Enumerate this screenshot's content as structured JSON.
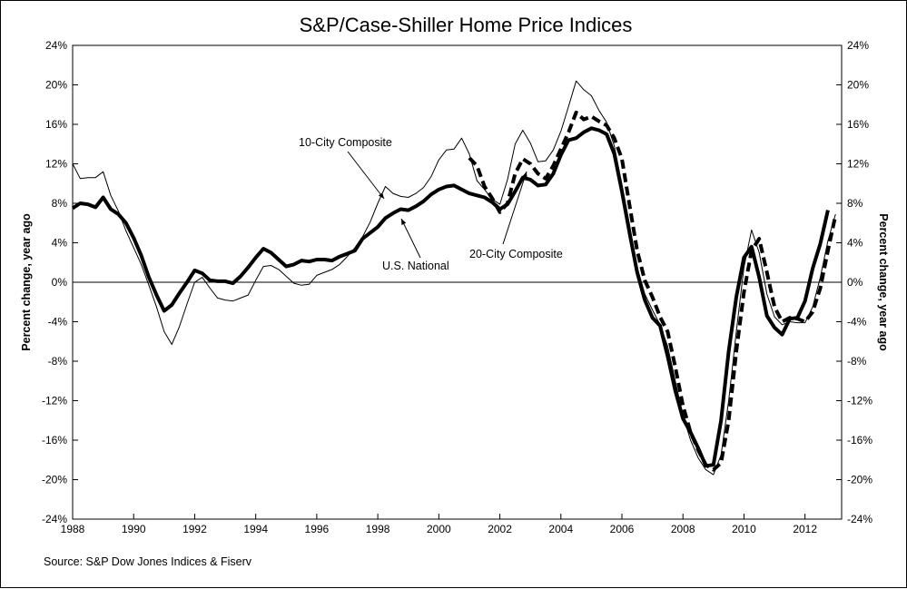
{
  "chart_data": {
    "type": "line",
    "title": "S&P/Case-Shiller Home Price Indices",
    "ylabel_left": "Percent change, year ago",
    "ylabel_right": "Percent change, year ago",
    "source": "Source: S&P Dow Jones Indices & Fiserv",
    "xlim": [
      1988,
      2013.2
    ],
    "ylim": [
      -24,
      24
    ],
    "x_ticks": [
      "1988",
      "1990",
      "1992",
      "1994",
      "1996",
      "1998",
      "2000",
      "2002",
      "2004",
      "2006",
      "2008",
      "2010",
      "2012"
    ],
    "y_ticks": [
      "24%",
      "20%",
      "16%",
      "12%",
      "8%",
      "4%",
      "0%",
      "-4%",
      "-8%",
      "-12%",
      "-16%",
      "-20%",
      "-24%"
    ],
    "grid": false,
    "legend": "none",
    "annotations": [
      {
        "text": "10-City Composite",
        "series": "10-City Composite"
      },
      {
        "text": "U.S. National",
        "series": "U.S. National"
      },
      {
        "text": "20-City Composite",
        "series": "20-City Composite"
      }
    ],
    "series": [
      {
        "name": "U.S. National",
        "style": "thick-solid",
        "points": [
          [
            1988.0,
            7.5
          ],
          [
            1988.25,
            8.0
          ],
          [
            1988.5,
            7.9
          ],
          [
            1988.75,
            7.6
          ],
          [
            1989.0,
            8.6
          ],
          [
            1989.25,
            7.4
          ],
          [
            1989.5,
            6.9
          ],
          [
            1989.75,
            6.0
          ],
          [
            1990.0,
            4.5
          ],
          [
            1990.25,
            2.7
          ],
          [
            1990.5,
            0.5
          ],
          [
            1990.75,
            -1.3
          ],
          [
            1991.0,
            -2.9
          ],
          [
            1991.25,
            -2.3
          ],
          [
            1991.5,
            -1.1
          ],
          [
            1991.75,
            0.0
          ],
          [
            1992.0,
            1.2
          ],
          [
            1992.25,
            0.9
          ],
          [
            1992.5,
            0.2
          ],
          [
            1992.75,
            0.1
          ],
          [
            1993.0,
            0.1
          ],
          [
            1993.25,
            -0.1
          ],
          [
            1993.5,
            0.6
          ],
          [
            1993.75,
            1.5
          ],
          [
            1994.0,
            2.5
          ],
          [
            1994.25,
            3.4
          ],
          [
            1994.5,
            3.0
          ],
          [
            1994.75,
            2.3
          ],
          [
            1995.0,
            1.6
          ],
          [
            1995.25,
            1.8
          ],
          [
            1995.5,
            2.2
          ],
          [
            1995.75,
            2.1
          ],
          [
            1996.0,
            2.3
          ],
          [
            1996.25,
            2.3
          ],
          [
            1996.5,
            2.2
          ],
          [
            1996.75,
            2.6
          ],
          [
            1997.0,
            2.9
          ],
          [
            1997.25,
            3.2
          ],
          [
            1997.5,
            4.4
          ],
          [
            1997.75,
            5.0
          ],
          [
            1998.0,
            5.6
          ],
          [
            1998.25,
            6.5
          ],
          [
            1998.5,
            7.0
          ],
          [
            1998.75,
            7.4
          ],
          [
            1999.0,
            7.3
          ],
          [
            1999.25,
            7.7
          ],
          [
            1999.5,
            8.2
          ],
          [
            1999.75,
            8.9
          ],
          [
            2000.0,
            9.4
          ],
          [
            2000.25,
            9.7
          ],
          [
            2000.5,
            9.8
          ],
          [
            2000.75,
            9.4
          ],
          [
            2001.0,
            9.0
          ],
          [
            2001.25,
            8.8
          ],
          [
            2001.5,
            8.6
          ],
          [
            2001.75,
            8.1
          ],
          [
            2002.0,
            7.4
          ],
          [
            2002.25,
            7.9
          ],
          [
            2002.5,
            9.2
          ],
          [
            2002.75,
            10.6
          ],
          [
            2003.0,
            10.4
          ],
          [
            2003.25,
            9.8
          ],
          [
            2003.5,
            9.9
          ],
          [
            2003.75,
            11.0
          ],
          [
            2004.0,
            12.9
          ],
          [
            2004.25,
            14.4
          ],
          [
            2004.5,
            14.6
          ],
          [
            2004.75,
            15.2
          ],
          [
            2005.0,
            15.6
          ],
          [
            2005.25,
            15.4
          ],
          [
            2005.5,
            15.0
          ],
          [
            2005.75,
            13.0
          ],
          [
            2006.0,
            9.2
          ],
          [
            2006.25,
            5.0
          ],
          [
            2006.5,
            1.0
          ],
          [
            2006.75,
            -1.8
          ],
          [
            2007.0,
            -3.6
          ],
          [
            2007.25,
            -4.4
          ],
          [
            2007.5,
            -7.5
          ],
          [
            2007.75,
            -11.0
          ],
          [
            2008.0,
            -13.8
          ],
          [
            2008.25,
            -15.2
          ],
          [
            2008.5,
            -16.8
          ],
          [
            2008.75,
            -18.6
          ],
          [
            2009.0,
            -18.5
          ],
          [
            2009.25,
            -14.0
          ],
          [
            2009.5,
            -7.0
          ],
          [
            2009.75,
            -1.5
          ],
          [
            2010.0,
            2.5
          ],
          [
            2010.25,
            3.6
          ],
          [
            2010.5,
            0.5
          ],
          [
            2010.75,
            -3.4
          ],
          [
            2011.0,
            -4.6
          ],
          [
            2011.25,
            -5.3
          ],
          [
            2011.5,
            -3.7
          ],
          [
            2011.75,
            -3.6
          ],
          [
            2012.0,
            -1.9
          ],
          [
            2012.25,
            1.4
          ],
          [
            2012.5,
            3.9
          ],
          [
            2012.75,
            7.3
          ]
        ]
      },
      {
        "name": "10-City Composite",
        "style": "thin-solid",
        "points": [
          [
            1988.0,
            12.0
          ],
          [
            1988.25,
            10.5
          ],
          [
            1988.5,
            10.6
          ],
          [
            1988.75,
            10.6
          ],
          [
            1989.0,
            11.2
          ],
          [
            1989.25,
            8.8
          ],
          [
            1989.5,
            7.2
          ],
          [
            1989.75,
            5.2
          ],
          [
            1990.0,
            3.5
          ],
          [
            1990.25,
            1.8
          ],
          [
            1990.5,
            -0.3
          ],
          [
            1990.75,
            -2.5
          ],
          [
            1991.0,
            -5.0
          ],
          [
            1991.25,
            -6.3
          ],
          [
            1991.5,
            -4.5
          ],
          [
            1991.75,
            -2.2
          ],
          [
            1992.0,
            0.0
          ],
          [
            1992.25,
            0.5
          ],
          [
            1992.5,
            -0.6
          ],
          [
            1992.75,
            -1.6
          ],
          [
            1993.0,
            -1.8
          ],
          [
            1993.25,
            -1.9
          ],
          [
            1993.5,
            -1.6
          ],
          [
            1993.75,
            -1.3
          ],
          [
            1994.0,
            0.2
          ],
          [
            1994.25,
            1.6
          ],
          [
            1994.5,
            1.7
          ],
          [
            1994.75,
            1.3
          ],
          [
            1995.0,
            0.6
          ],
          [
            1995.25,
            -0.1
          ],
          [
            1995.5,
            -0.3
          ],
          [
            1995.75,
            -0.2
          ],
          [
            1996.0,
            0.7
          ],
          [
            1996.25,
            1.0
          ],
          [
            1996.5,
            1.3
          ],
          [
            1996.75,
            1.8
          ],
          [
            1997.0,
            2.6
          ],
          [
            1997.25,
            3.5
          ],
          [
            1997.5,
            4.6
          ],
          [
            1997.75,
            6.1
          ],
          [
            1998.0,
            8.0
          ],
          [
            1998.25,
            9.7
          ],
          [
            1998.5,
            9.0
          ],
          [
            1998.75,
            8.7
          ],
          [
            1999.0,
            8.6
          ],
          [
            1999.25,
            9.0
          ],
          [
            1999.5,
            9.6
          ],
          [
            1999.75,
            10.7
          ],
          [
            2000.0,
            12.4
          ],
          [
            2000.25,
            13.4
          ],
          [
            2000.5,
            13.5
          ],
          [
            2000.75,
            14.6
          ],
          [
            2001.0,
            13.0
          ],
          [
            2001.25,
            10.3
          ],
          [
            2001.5,
            9.4
          ],
          [
            2001.75,
            8.4
          ],
          [
            2002.0,
            7.9
          ],
          [
            2002.25,
            10.4
          ],
          [
            2002.5,
            14.0
          ],
          [
            2002.75,
            15.4
          ],
          [
            2003.0,
            14.1
          ],
          [
            2003.25,
            12.2
          ],
          [
            2003.5,
            12.3
          ],
          [
            2003.75,
            13.4
          ],
          [
            2004.0,
            15.3
          ],
          [
            2004.25,
            17.8
          ],
          [
            2004.5,
            20.4
          ],
          [
            2004.75,
            19.5
          ],
          [
            2005.0,
            18.9
          ],
          [
            2005.25,
            17.4
          ],
          [
            2005.5,
            16.2
          ],
          [
            2005.75,
            13.8
          ],
          [
            2006.0,
            9.9
          ],
          [
            2006.25,
            5.8
          ],
          [
            2006.5,
            1.5
          ],
          [
            2006.75,
            -1.2
          ],
          [
            2007.0,
            -2.8
          ],
          [
            2007.25,
            -4.3
          ],
          [
            2007.5,
            -6.5
          ],
          [
            2007.75,
            -10.0
          ],
          [
            2008.0,
            -13.5
          ],
          [
            2008.25,
            -16.0
          ],
          [
            2008.5,
            -17.8
          ],
          [
            2008.75,
            -19.0
          ],
          [
            2009.0,
            -19.5
          ],
          [
            2009.25,
            -17.5
          ],
          [
            2009.5,
            -12.0
          ],
          [
            2009.75,
            -5.0
          ],
          [
            2010.0,
            1.5
          ],
          [
            2010.25,
            5.3
          ],
          [
            2010.5,
            3.0
          ],
          [
            2010.75,
            -1.2
          ],
          [
            2011.0,
            -3.5
          ],
          [
            2011.25,
            -4.3
          ],
          [
            2011.5,
            -4.0
          ],
          [
            2011.75,
            -4.1
          ],
          [
            2012.0,
            -4.1
          ],
          [
            2012.25,
            -2.5
          ],
          [
            2012.5,
            0.5
          ],
          [
            2012.75,
            4.2
          ],
          [
            2013.0,
            6.9
          ]
        ]
      },
      {
        "name": "20-City Composite",
        "style": "thick-dashed",
        "points": [
          [
            2001.0,
            12.6
          ],
          [
            2001.25,
            11.8
          ],
          [
            2001.5,
            9.7
          ],
          [
            2001.75,
            8.5
          ],
          [
            2002.0,
            7.1
          ],
          [
            2002.25,
            8.0
          ],
          [
            2002.5,
            11.0
          ],
          [
            2002.75,
            12.5
          ],
          [
            2003.0,
            12.0
          ],
          [
            2003.25,
            11.0
          ],
          [
            2003.5,
            10.5
          ],
          [
            2003.75,
            11.8
          ],
          [
            2004.0,
            13.5
          ],
          [
            2004.25,
            15.2
          ],
          [
            2004.5,
            17.2
          ],
          [
            2004.75,
            16.5
          ],
          [
            2005.0,
            16.8
          ],
          [
            2005.25,
            16.3
          ],
          [
            2005.5,
            15.9
          ],
          [
            2005.75,
            14.6
          ],
          [
            2006.0,
            12.5
          ],
          [
            2006.25,
            7.8
          ],
          [
            2006.5,
            3.2
          ],
          [
            2006.75,
            0.2
          ],
          [
            2007.0,
            -1.5
          ],
          [
            2007.25,
            -3.5
          ],
          [
            2007.5,
            -5.0
          ],
          [
            2007.75,
            -8.6
          ],
          [
            2008.0,
            -12.5
          ],
          [
            2008.25,
            -15.2
          ],
          [
            2008.5,
            -17.0
          ],
          [
            2008.75,
            -18.5
          ],
          [
            2009.0,
            -19.0
          ],
          [
            2009.25,
            -18.3
          ],
          [
            2009.5,
            -14.0
          ],
          [
            2009.75,
            -7.0
          ],
          [
            2010.0,
            -1.0
          ],
          [
            2010.25,
            3.2
          ],
          [
            2010.5,
            4.4
          ],
          [
            2010.75,
            1.0
          ],
          [
            2011.0,
            -2.5
          ],
          [
            2011.25,
            -4.0
          ],
          [
            2011.5,
            -3.6
          ],
          [
            2011.75,
            -3.7
          ],
          [
            2012.0,
            -4.0
          ],
          [
            2012.25,
            -3.0
          ],
          [
            2012.5,
            -0.6
          ],
          [
            2012.75,
            3.2
          ],
          [
            2013.0,
            6.8
          ]
        ]
      }
    ]
  }
}
